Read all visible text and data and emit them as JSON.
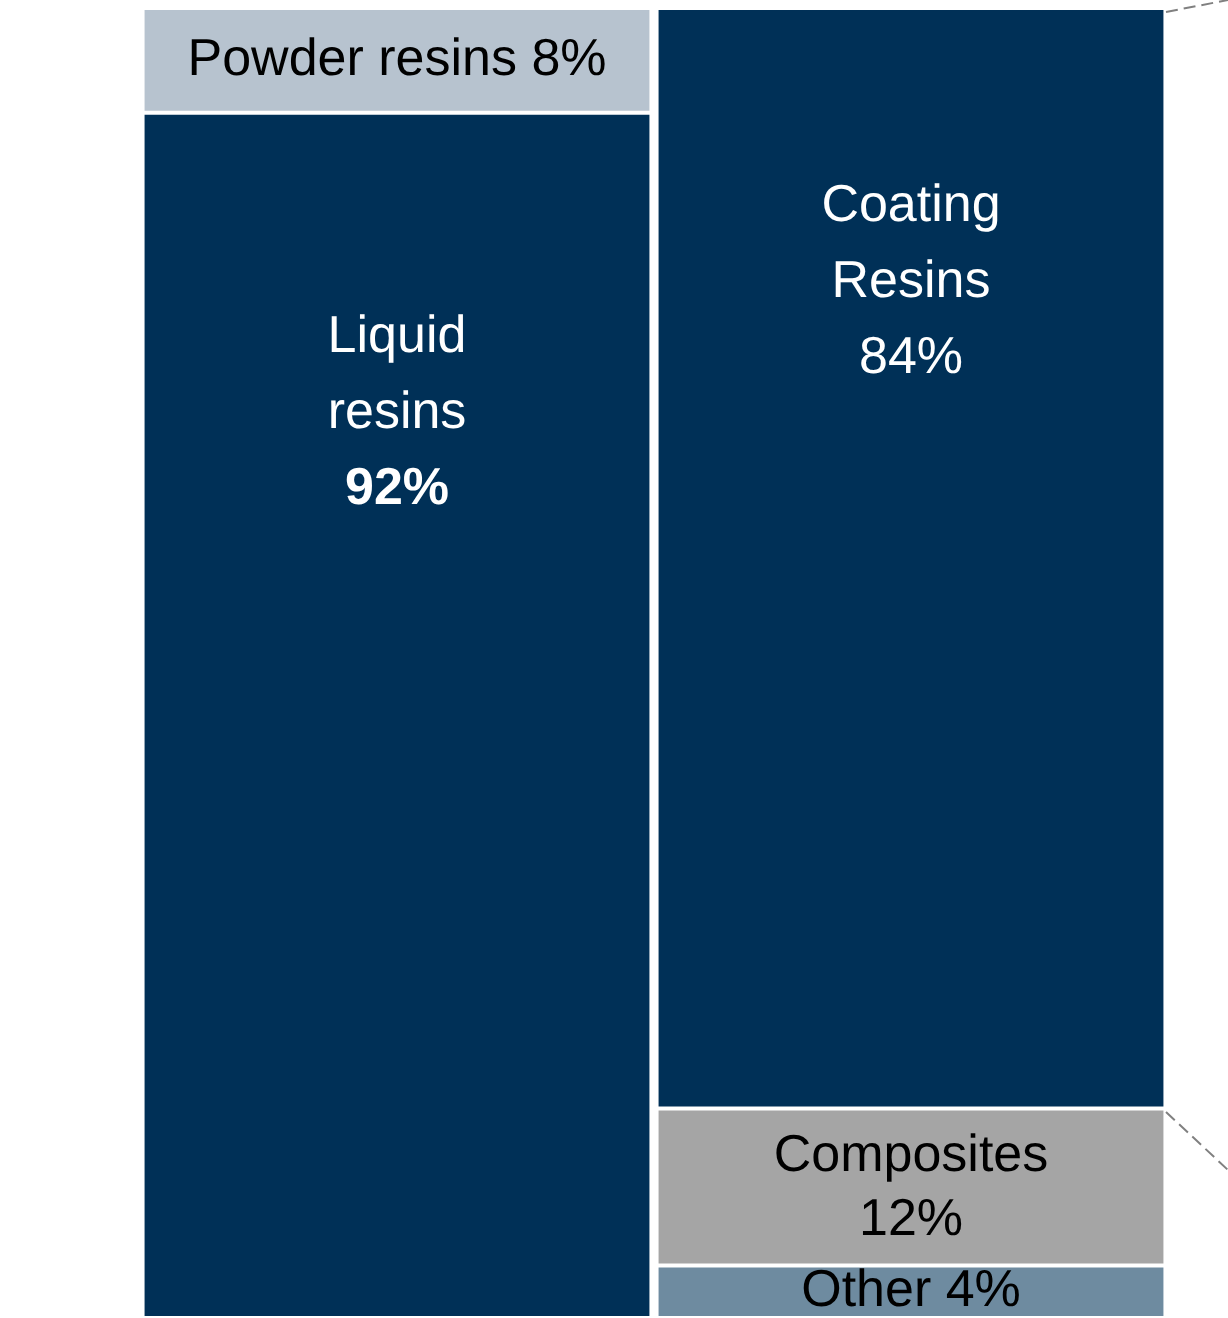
{
  "chart_data": {
    "type": "bar",
    "stacked": true,
    "categories": [
      null,
      null
    ],
    "tick_labels": false,
    "legend": false,
    "series": [
      {
        "name": "Liquid resins",
        "color": "#003057",
        "values": [
          92,
          null
        ],
        "value_labels": [
          "92%",
          null
        ]
      },
      {
        "name": "Other",
        "color": "#6e8ba0",
        "values": [
          null,
          4
        ],
        "value_labels": [
          null,
          "4%"
        ]
      },
      {
        "name": "Composites",
        "color": "#a5a5a5",
        "values": [
          null,
          12
        ],
        "value_labels": [
          null,
          "12%"
        ]
      },
      {
        "name": "Coating Resins",
        "color": "#003057",
        "values": [
          null,
          84
        ],
        "value_labels": [
          null,
          "84%"
        ]
      },
      {
        "name": "Powder resins",
        "color": "#b7c3cf",
        "values": [
          8,
          null
        ],
        "value_labels": [
          "8%",
          null
        ]
      }
    ]
  }
}
